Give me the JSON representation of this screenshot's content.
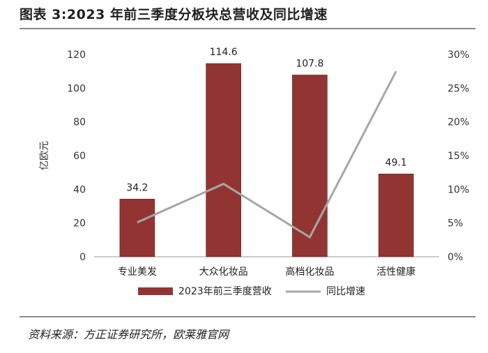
{
  "title": "图表 3:2023 年前三季度分板块总营收及同比增速",
  "source": "资料来源：方正证券研究所，欧莱雅官网",
  "colors": {
    "bar": "#923532",
    "line": "#a6a6a6",
    "axis": "#9a9a9a",
    "rule": "#8a8a8a"
  },
  "chart_data": {
    "type": "bar",
    "categories": [
      "专业美发",
      "大众化妆品",
      "高档化妆品",
      "活性健康"
    ],
    "ylabel": "亿欧元",
    "ylim": [
      0,
      120
    ],
    "y_ticks": [
      "0",
      "20",
      "40",
      "60",
      "80",
      "100",
      "120"
    ],
    "y2lim": [
      0,
      0.3
    ],
    "y2_ticks": [
      "0%",
      "5%",
      "10%",
      "15%",
      "20%",
      "25%",
      "30%"
    ],
    "grid": false,
    "legend_position": "bottom",
    "series": [
      {
        "name": "2023年前三季度营收",
        "type": "bar",
        "axis": "left",
        "values": [
          34.2,
          114.6,
          107.8,
          49.1
        ],
        "labels": [
          "34.2",
          "114.6",
          "107.8",
          "49.1"
        ]
      },
      {
        "name": "同比增速",
        "type": "line",
        "axis": "right",
        "values": [
          0.051,
          0.108,
          0.029,
          0.275
        ]
      }
    ]
  }
}
